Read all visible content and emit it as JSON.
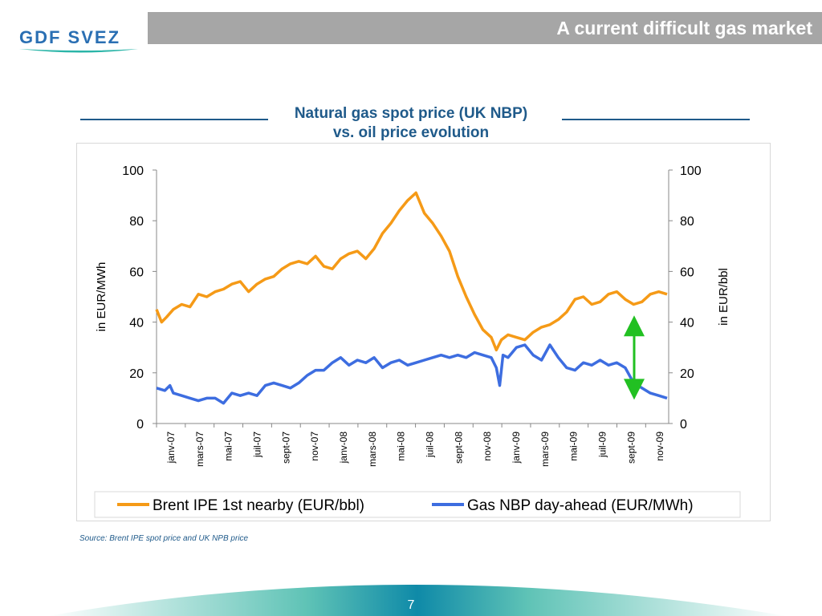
{
  "header": {
    "title": "A current difficult gas market"
  },
  "logo": {
    "text": "GDF SVEZ"
  },
  "colors": {
    "orange": "#f59a17",
    "blue": "#3d6de0",
    "green": "#22c022",
    "title": "#1f5a8a"
  },
  "chart_data": {
    "type": "line",
    "title": "Natural gas spot price (UK NBP)",
    "subtitle": "vs. oil price evolution",
    "ylabel_left": "in EUR/MWh",
    "ylabel_right": "in EUR/bbl",
    "ylim": [
      0,
      100
    ],
    "yticks": [
      0,
      20,
      40,
      60,
      80,
      100
    ],
    "x_ticks": [
      "janv-07",
      "mars-07",
      "mai-07",
      "juil-07",
      "sept-07",
      "nov-07",
      "janv-08",
      "mars-08",
      "mai-08",
      "juil-08",
      "sept-08",
      "nov-08",
      "janv-09",
      "mars-09",
      "mai-09",
      "juil-09",
      "sept-09",
      "nov-09"
    ],
    "x_end": 17.8,
    "legend_placement": "bottom",
    "annotation": "double-headed arrow",
    "arrow": {
      "x": 16.6,
      "from": 42,
      "to": 10
    },
    "series": [
      {
        "name": "Brent IPE 1st nearby (EUR/bbl)",
        "axis": "right",
        "color": "#f59a17",
        "points": [
          [
            0,
            45
          ],
          [
            0.3,
            40
          ],
          [
            0.6,
            42
          ],
          [
            1,
            45
          ],
          [
            1.5,
            47
          ],
          [
            2,
            46
          ],
          [
            2.5,
            51
          ],
          [
            3,
            50
          ],
          [
            3.5,
            52
          ],
          [
            4,
            53
          ],
          [
            4.5,
            55
          ],
          [
            5,
            56
          ],
          [
            5.5,
            52
          ],
          [
            6,
            55
          ],
          [
            6.5,
            57
          ],
          [
            7,
            58
          ],
          [
            7.5,
            61
          ],
          [
            8,
            63
          ],
          [
            8.5,
            64
          ],
          [
            9,
            63
          ],
          [
            9.5,
            66
          ],
          [
            10,
            62
          ],
          [
            10.5,
            61
          ],
          [
            11,
            65
          ],
          [
            11.5,
            67
          ],
          [
            12,
            68
          ],
          [
            12.5,
            65
          ],
          [
            13,
            69
          ],
          [
            13.5,
            75
          ],
          [
            14,
            79
          ],
          [
            14.5,
            84
          ],
          [
            15,
            88
          ],
          [
            15.5,
            91
          ],
          [
            16,
            83
          ],
          [
            16.5,
            79
          ],
          [
            17,
            74
          ],
          [
            17.5,
            68
          ],
          [
            18,
            58
          ],
          [
            18.5,
            50
          ],
          [
            19,
            43
          ],
          [
            19.5,
            37
          ],
          [
            20,
            34
          ],
          [
            20.3,
            29
          ],
          [
            20.6,
            33
          ],
          [
            21,
            35
          ],
          [
            21.5,
            34
          ],
          [
            22,
            33
          ],
          [
            22.5,
            36
          ],
          [
            23,
            38
          ],
          [
            23.5,
            39
          ],
          [
            24,
            41
          ],
          [
            24.5,
            44
          ],
          [
            25,
            49
          ],
          [
            25.5,
            50
          ],
          [
            26,
            47
          ],
          [
            26.5,
            48
          ],
          [
            27,
            51
          ],
          [
            27.5,
            52
          ],
          [
            28,
            49
          ],
          [
            28.5,
            47
          ],
          [
            29,
            48
          ],
          [
            29.5,
            51
          ],
          [
            30,
            52
          ],
          [
            30.5,
            51
          ]
        ]
      },
      {
        "name": "Gas NBP day-ahead (EUR/MWh)",
        "axis": "left",
        "color": "#3d6de0",
        "points": [
          [
            0,
            14
          ],
          [
            0.5,
            13
          ],
          [
            0.8,
            15
          ],
          [
            1,
            12
          ],
          [
            1.5,
            11
          ],
          [
            2,
            10
          ],
          [
            2.5,
            9
          ],
          [
            3,
            10
          ],
          [
            3.5,
            10
          ],
          [
            4,
            8
          ],
          [
            4.5,
            12
          ],
          [
            5,
            11
          ],
          [
            5.5,
            12
          ],
          [
            6,
            11
          ],
          [
            6.5,
            15
          ],
          [
            7,
            16
          ],
          [
            7.5,
            15
          ],
          [
            8,
            14
          ],
          [
            8.5,
            16
          ],
          [
            9,
            19
          ],
          [
            9.5,
            21
          ],
          [
            10,
            21
          ],
          [
            10.5,
            24
          ],
          [
            11,
            26
          ],
          [
            11.5,
            23
          ],
          [
            12,
            25
          ],
          [
            12.5,
            24
          ],
          [
            13,
            26
          ],
          [
            13.5,
            22
          ],
          [
            14,
            24
          ],
          [
            14.5,
            25
          ],
          [
            15,
            23
          ],
          [
            15.5,
            24
          ],
          [
            16,
            25
          ],
          [
            16.5,
            26
          ],
          [
            17,
            27
          ],
          [
            17.5,
            26
          ],
          [
            18,
            27
          ],
          [
            18.5,
            26
          ],
          [
            19,
            28
          ],
          [
            19.5,
            27
          ],
          [
            20,
            26
          ],
          [
            20.3,
            22
          ],
          [
            20.5,
            15
          ],
          [
            20.7,
            27
          ],
          [
            21,
            26
          ],
          [
            21.5,
            30
          ],
          [
            22,
            31
          ],
          [
            22.5,
            27
          ],
          [
            23,
            25
          ],
          [
            23.5,
            31
          ],
          [
            24,
            26
          ],
          [
            24.5,
            22
          ],
          [
            25,
            21
          ],
          [
            25.5,
            24
          ],
          [
            26,
            23
          ],
          [
            26.5,
            25
          ],
          [
            27,
            23
          ],
          [
            27.5,
            24
          ],
          [
            28,
            22
          ],
          [
            28.5,
            16
          ],
          [
            29,
            14
          ],
          [
            29.5,
            12
          ],
          [
            30,
            11
          ],
          [
            30.5,
            10
          ]
        ]
      }
    ]
  },
  "source": "Source: Brent IPE spot price and UK NPB price",
  "page": {
    "number": "7"
  }
}
